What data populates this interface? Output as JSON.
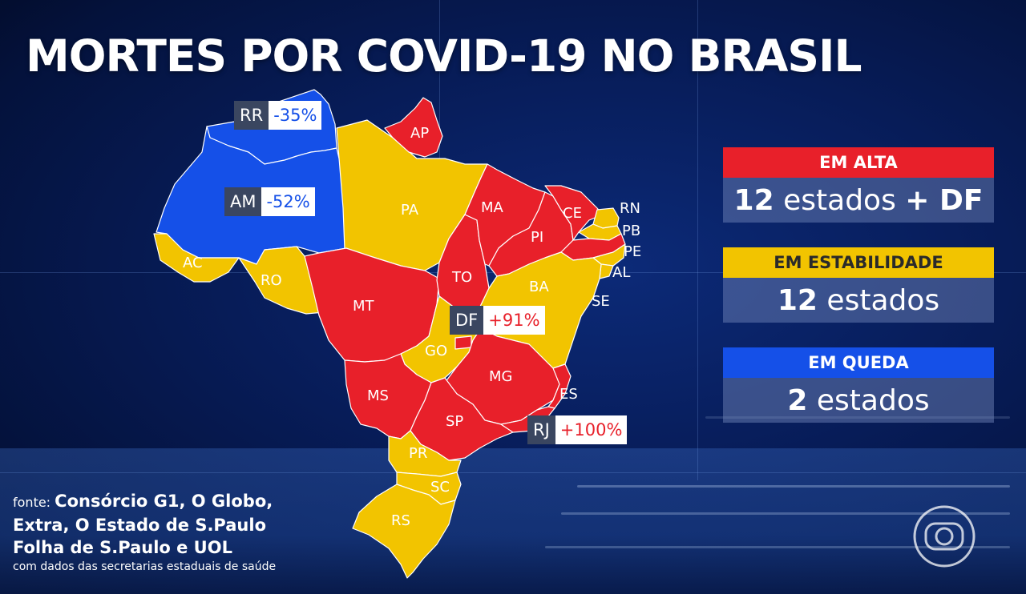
{
  "title": "MORTES POR COVID-19 NO BRASIL",
  "colors": {
    "alta": "#e8202a",
    "estabilidade": "#f2c400",
    "queda": "#1550e8",
    "alta_text": "#e8202a",
    "queda_text": "#1550e8"
  },
  "map": {
    "state_labels": {
      "RR": "RR",
      "AP": "AP",
      "AM": "AM",
      "PA": "PA",
      "MA": "MA",
      "CE": "CE",
      "RN": "RN",
      "PB": "PB",
      "PE": "PE",
      "AL": "AL",
      "SE": "SE",
      "PI": "PI",
      "AC": "AC",
      "RO": "RO",
      "TO": "TO",
      "BA": "BA",
      "MT": "MT",
      "DF": "DF",
      "GO": "GO",
      "MG": "MG",
      "ES": "ES",
      "MS": "MS",
      "SP": "SP",
      "RJ": "RJ",
      "PR": "PR",
      "SC": "SC",
      "RS": "RS"
    },
    "state_status": {
      "RR": "queda",
      "AM": "queda",
      "AP": "alta",
      "PA": "estabilidade",
      "MA": "alta",
      "CE": "alta",
      "RN": "estabilidade",
      "PB": "estabilidade",
      "PE": "alta",
      "AL": "estabilidade",
      "SE": "estabilidade",
      "PI": "alta",
      "AC": "estabilidade",
      "RO": "estabilidade",
      "TO": "alta",
      "BA": "estabilidade",
      "MT": "alta",
      "DF": "alta",
      "GO": "estabilidade",
      "MG": "alta",
      "ES": "alta",
      "MS": "alta",
      "SP": "alta",
      "RJ": "alta",
      "PR": "estabilidade",
      "SC": "estabilidade",
      "RS": "estabilidade"
    },
    "highlights": [
      {
        "code": "RR",
        "value": "-35%",
        "trend": "queda"
      },
      {
        "code": "AM",
        "value": "-52%",
        "trend": "queda"
      },
      {
        "code": "DF",
        "value": "+91%",
        "trend": "alta"
      },
      {
        "code": "RJ",
        "value": "+100%",
        "trend": "alta"
      }
    ]
  },
  "legend": {
    "alta": {
      "label": "EM ALTA",
      "count": "12",
      "unit": "estados",
      "extra": "+ DF"
    },
    "estabilidade": {
      "label": "EM ESTABILIDADE",
      "count": "12",
      "unit": "estados"
    },
    "queda": {
      "label": "EM QUEDA",
      "count": "2",
      "unit": "estados"
    }
  },
  "source": {
    "prefix": "fonte:",
    "line1": "Consórcio G1, O Globo,",
    "line2": "Extra, O Estado de S.Paulo",
    "line3": "Folha de S.Paulo e UOL",
    "note": "com dados das secretarias estaduais de saúde"
  },
  "logo_icon": "tv-globo-logo-icon"
}
